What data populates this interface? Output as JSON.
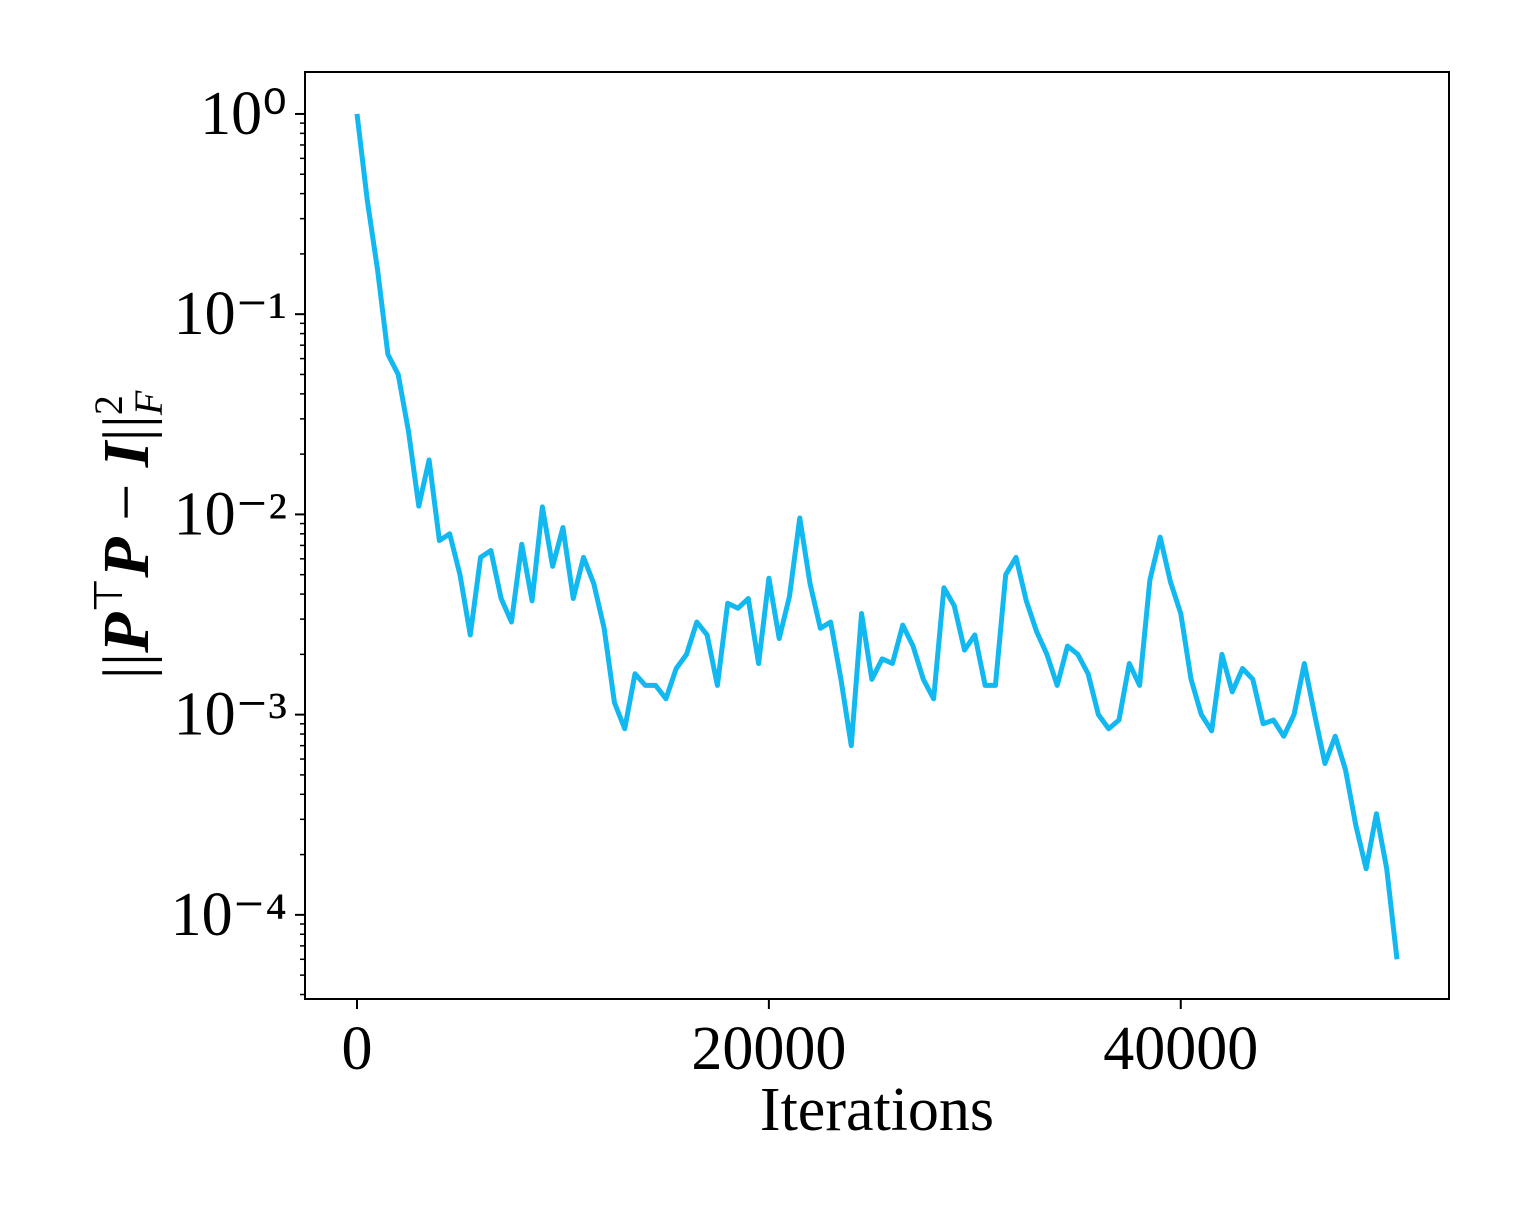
{
  "chart_data": {
    "type": "line",
    "xlabel": "Iterations",
    "ylabel": [
      "||",
      "P",
      "⊤",
      "P",
      " − ",
      "I",
      "||",
      "2",
      "F"
    ],
    "ylog": true,
    "xlim": [
      -2525,
      53025
    ],
    "ylim": [
      3.8e-05,
      1.62
    ],
    "xticks": [
      0,
      20000,
      40000
    ],
    "yticks": [
      {
        "value": 1,
        "label": "10⁰"
      },
      {
        "value": 0.1,
        "label": "10⁻¹"
      },
      {
        "value": 0.01,
        "label": "10⁻²"
      },
      {
        "value": 0.001,
        "label": "10⁻³"
      },
      {
        "value": 0.0001,
        "label": "10⁻⁴"
      }
    ],
    "x": [
      0,
      500,
      1000,
      1500,
      2000,
      2500,
      3000,
      3500,
      4000,
      4500,
      5000,
      5500,
      6000,
      6500,
      7000,
      7500,
      8000,
      8500,
      9000,
      9500,
      10000,
      10500,
      11000,
      11500,
      12000,
      12500,
      13000,
      13500,
      14000,
      14500,
      15000,
      15500,
      16000,
      16500,
      17000,
      17500,
      18000,
      18500,
      19000,
      19500,
      20000,
      20500,
      21000,
      21500,
      22000,
      22500,
      23000,
      23500,
      24000,
      24500,
      25000,
      25500,
      26000,
      26500,
      27000,
      27500,
      28000,
      28500,
      29000,
      29500,
      30000,
      30500,
      31000,
      31500,
      32000,
      32500,
      33000,
      33500,
      34000,
      34500,
      35000,
      35500,
      36000,
      36500,
      37000,
      37500,
      38000,
      38500,
      39000,
      39500,
      40000,
      40500,
      41000,
      41500,
      42000,
      42500,
      43000,
      43500,
      44000,
      44500,
      45000,
      45500,
      46000,
      46500,
      47000,
      47500,
      48000,
      48500,
      49000,
      49500,
      50000,
      50500
    ],
    "series": [
      {
        "color": "#12b8f0",
        "values": [
          1.0,
          0.37,
          0.166,
          0.063,
          0.05,
          0.026,
          0.011,
          0.0187,
          0.0074,
          0.008,
          0.005,
          0.0025,
          0.0061,
          0.0066,
          0.0038,
          0.0029,
          0.0071,
          0.0037,
          0.0109,
          0.0055,
          0.0086,
          0.0038,
          0.0061,
          0.0045,
          0.0027,
          0.00115,
          0.00085,
          0.0016,
          0.0014,
          0.0014,
          0.0012,
          0.0017,
          0.002,
          0.0029,
          0.0025,
          0.0014,
          0.0036,
          0.0034,
          0.0038,
          0.0018,
          0.0048,
          0.0024,
          0.0039,
          0.0096,
          0.0045,
          0.0027,
          0.0029,
          0.0015,
          0.0007,
          0.0032,
          0.0015,
          0.0019,
          0.0018,
          0.0028,
          0.0022,
          0.0015,
          0.0012,
          0.0043,
          0.0035,
          0.0021,
          0.0025,
          0.0014,
          0.0014,
          0.005,
          0.0061,
          0.0037,
          0.0026,
          0.002,
          0.0014,
          0.0022,
          0.002,
          0.0016,
          0.001,
          0.00085,
          0.00094,
          0.0018,
          0.0014,
          0.0047,
          0.0077,
          0.0046,
          0.0032,
          0.0015,
          0.001,
          0.00083,
          0.002,
          0.0013,
          0.0017,
          0.0015,
          0.0009,
          0.00094,
          0.00078,
          0.001,
          0.0018,
          0.001,
          0.00057,
          0.00078,
          0.00053,
          0.00028,
          0.00017,
          0.00032,
          0.00017,
          6e-05
        ]
      }
    ]
  }
}
